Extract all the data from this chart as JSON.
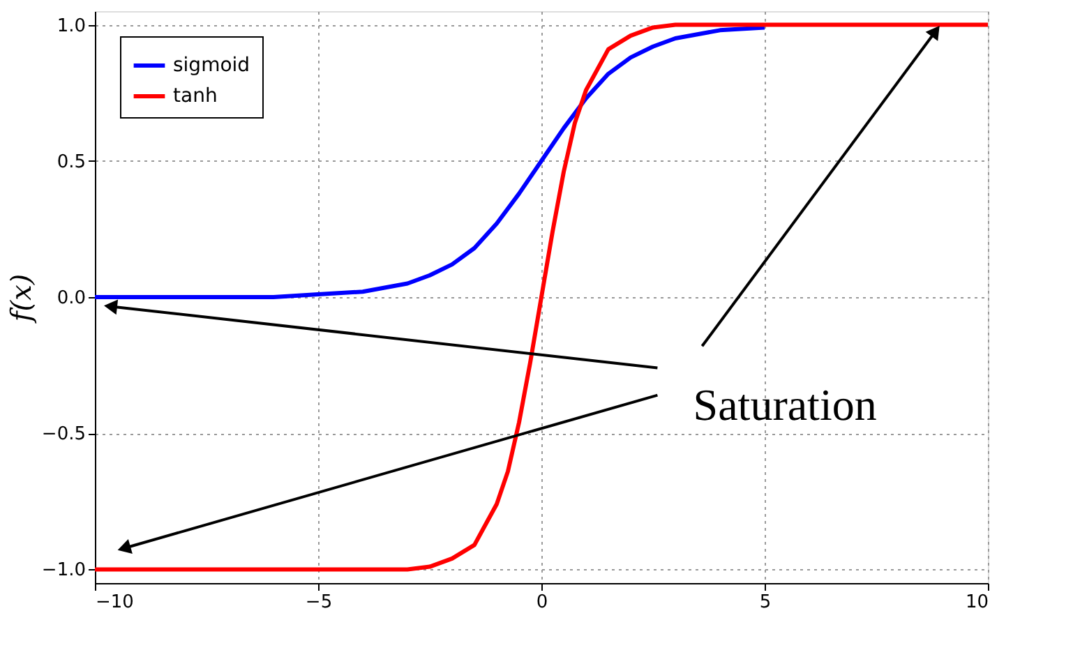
{
  "chart_data": {
    "type": "line",
    "ylabel": "f(x)",
    "xlim": [
      -10,
      10
    ],
    "ylim": [
      -1.05,
      1.05
    ],
    "xticks": [
      {
        "value": -10,
        "label": "−10"
      },
      {
        "value": -5,
        "label": "−5"
      },
      0,
      5,
      10
    ],
    "yticks": [
      {
        "value": -1,
        "label": "−1.0"
      },
      {
        "value": -0.5,
        "label": "−0.5"
      },
      {
        "value": 0,
        "label": "0.0"
      },
      {
        "value": 0.5,
        "label": "0.5"
      },
      {
        "value": 1,
        "label": "1.0"
      }
    ],
    "grid": true,
    "legend": "top left",
    "line_style": "solid",
    "marker": "none",
    "annotations": [
      "Saturation"
    ],
    "series": [
      {
        "name": "sigmoid",
        "color": "#0000ff",
        "x": [
          -10,
          -9,
          -8,
          -7,
          -6,
          -5,
          -4,
          -3,
          -2.5,
          -2,
          -1.5,
          -1,
          -0.5,
          0,
          0.5,
          1,
          1.5,
          2,
          2.5,
          3,
          4,
          5
        ],
        "values": [
          0.0,
          0.0,
          0.0,
          0.0,
          0.0,
          0.01,
          0.02,
          0.05,
          0.08,
          0.12,
          0.18,
          0.27,
          0.38,
          0.5,
          0.62,
          0.73,
          0.82,
          0.88,
          0.92,
          0.95,
          0.98,
          0.99
        ]
      },
      {
        "name": "tanh",
        "color": "#ff0000",
        "x": [
          -10,
          -8,
          -6,
          -4,
          -3,
          -2.5,
          -2,
          -1.5,
          -1,
          -0.75,
          -0.5,
          -0.25,
          0,
          0.25,
          0.5,
          0.75,
          1,
          1.5,
          2,
          2.5,
          3,
          4,
          6,
          8,
          10
        ],
        "values": [
          -1.0,
          -1.0,
          -1.0,
          -1.0,
          -1.0,
          -0.99,
          -0.96,
          -0.91,
          -0.76,
          -0.64,
          -0.46,
          -0.24,
          0,
          0.24,
          0.46,
          0.64,
          0.76,
          0.91,
          0.96,
          0.99,
          1.0,
          1.0,
          1.0,
          1.0,
          1.0
        ]
      }
    ]
  }
}
